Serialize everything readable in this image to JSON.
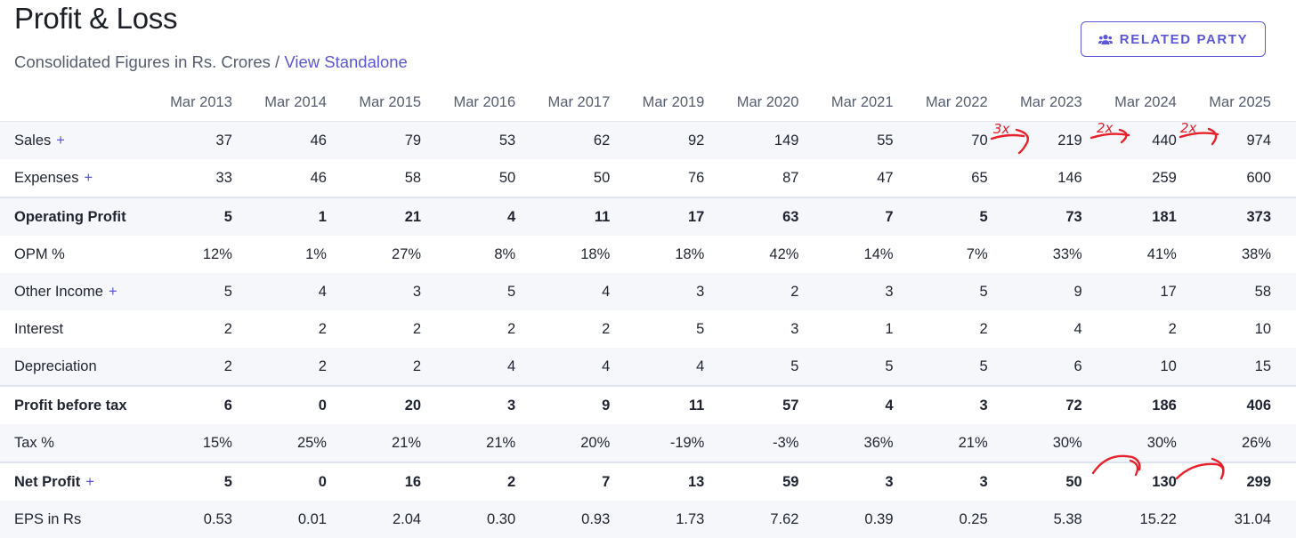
{
  "header": {
    "title": "Profit & Loss",
    "subtitle_prefix": "Consolidated Figures in Rs. Crores /",
    "view_standalone_link": "View Standalone",
    "related_party_label": "RELATED PARTY"
  },
  "table": {
    "columns": [
      "Mar 2013",
      "Mar 2014",
      "Mar 2015",
      "Mar 2016",
      "Mar 2017",
      "Mar 2019",
      "Mar 2020",
      "Mar 2021",
      "Mar 2022",
      "Mar 2023",
      "Mar 2024",
      "Mar 2025"
    ],
    "expand_symbol": "+",
    "rows": [
      {
        "label": "Sales",
        "expandable": true,
        "bold": false,
        "values": [
          "37",
          "46",
          "79",
          "53",
          "62",
          "92",
          "149",
          "55",
          "70",
          "219",
          "440",
          "974"
        ]
      },
      {
        "label": "Expenses",
        "expandable": true,
        "bold": false,
        "values": [
          "33",
          "46",
          "58",
          "50",
          "50",
          "76",
          "87",
          "47",
          "65",
          "146",
          "259",
          "600"
        ]
      },
      {
        "label": "Operating Profit",
        "expandable": false,
        "bold": true,
        "separator": true,
        "values": [
          "5",
          "1",
          "21",
          "4",
          "11",
          "17",
          "63",
          "7",
          "5",
          "73",
          "181",
          "373"
        ]
      },
      {
        "label": "OPM %",
        "expandable": false,
        "bold": false,
        "values": [
          "12%",
          "1%",
          "27%",
          "8%",
          "18%",
          "18%",
          "42%",
          "14%",
          "7%",
          "33%",
          "41%",
          "38%"
        ]
      },
      {
        "label": "Other Income",
        "expandable": true,
        "bold": false,
        "values": [
          "5",
          "4",
          "3",
          "5",
          "4",
          "3",
          "2",
          "3",
          "5",
          "9",
          "17",
          "58"
        ]
      },
      {
        "label": "Interest",
        "expandable": false,
        "bold": false,
        "values": [
          "2",
          "2",
          "2",
          "2",
          "2",
          "5",
          "3",
          "1",
          "2",
          "4",
          "2",
          "10"
        ]
      },
      {
        "label": "Depreciation",
        "expandable": false,
        "bold": false,
        "values": [
          "2",
          "2",
          "2",
          "4",
          "4",
          "4",
          "5",
          "5",
          "5",
          "6",
          "10",
          "15"
        ]
      },
      {
        "label": "Profit before tax",
        "expandable": false,
        "bold": true,
        "separator": true,
        "values": [
          "6",
          "0",
          "20",
          "3",
          "9",
          "11",
          "57",
          "4",
          "3",
          "72",
          "186",
          "406"
        ]
      },
      {
        "label": "Tax %",
        "expandable": false,
        "bold": false,
        "values": [
          "15%",
          "25%",
          "21%",
          "21%",
          "20%",
          "-19%",
          "-3%",
          "36%",
          "21%",
          "30%",
          "30%",
          "26%"
        ]
      },
      {
        "label": "Net Profit",
        "expandable": true,
        "bold": true,
        "separator": true,
        "values": [
          "5",
          "0",
          "16",
          "2",
          "7",
          "13",
          "59",
          "3",
          "3",
          "50",
          "130",
          "299"
        ]
      },
      {
        "label": "EPS in Rs",
        "expandable": false,
        "bold": false,
        "values": [
          "0.53",
          "0.01",
          "2.04",
          "0.30",
          "0.93",
          "1.73",
          "7.62",
          "0.39",
          "0.25",
          "5.38",
          "15.22",
          "31.04"
        ]
      }
    ]
  },
  "annotations": {
    "color": "#e8202a",
    "sales_notes": [
      "3x",
      "2x",
      "2x"
    ]
  },
  "colors": {
    "accent": "#5b57d8",
    "row_stripe": "#f6f7fb"
  }
}
